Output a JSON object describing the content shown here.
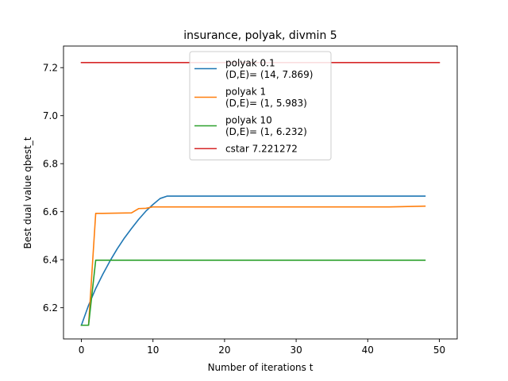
{
  "chart_data": {
    "type": "line",
    "title": "insurance, polyak, divmin 5",
    "xlabel": "Number of iterations t",
    "ylabel": "Best dual value qbest_t",
    "xlim": [
      -2.5,
      52.5
    ],
    "ylim": [
      6.07,
      7.29
    ],
    "xticks": [
      0,
      10,
      20,
      30,
      40,
      50
    ],
    "yticks": [
      6.2,
      6.4,
      6.6,
      6.8,
      7.0,
      7.2
    ],
    "ytick_labels": [
      "6.2",
      "6.4",
      "6.6",
      "6.8",
      "7.0",
      "7.2"
    ],
    "grid": false,
    "legend_position": "top-center",
    "series": [
      {
        "name_lines": [
          "polyak 0.1",
          "(D,E)= (14, 7.869)"
        ],
        "color": "#1f77b4",
        "x": [
          0,
          1,
          2,
          3,
          4,
          5,
          6,
          7,
          8,
          9,
          10,
          11,
          12,
          13,
          48
        ],
        "y": [
          6.127,
          6.21,
          6.28,
          6.34,
          6.395,
          6.445,
          6.49,
          6.53,
          6.568,
          6.602,
          6.63,
          6.655,
          6.665,
          6.665,
          6.665
        ]
      },
      {
        "name_lines": [
          "polyak 1",
          "(D,E)= (1, 5.983)"
        ],
        "color": "#ff7f0e",
        "x": [
          0,
          1,
          2,
          3,
          7,
          8,
          9,
          10,
          11,
          12,
          43,
          48
        ],
        "y": [
          6.127,
          6.127,
          6.593,
          6.593,
          6.595,
          6.613,
          6.614,
          6.62,
          6.62,
          6.62,
          6.62,
          6.623
        ]
      },
      {
        "name_lines": [
          "polyak 10",
          "(D,E)= (1, 6.232)"
        ],
        "color": "#2ca02c",
        "x": [
          0,
          1,
          2,
          48
        ],
        "y": [
          6.127,
          6.127,
          6.398,
          6.398
        ]
      },
      {
        "name_lines": [
          "cstar 7.221272"
        ],
        "color": "#d62728",
        "x": [
          0,
          50
        ],
        "y": [
          7.2213,
          7.2213
        ]
      }
    ]
  }
}
